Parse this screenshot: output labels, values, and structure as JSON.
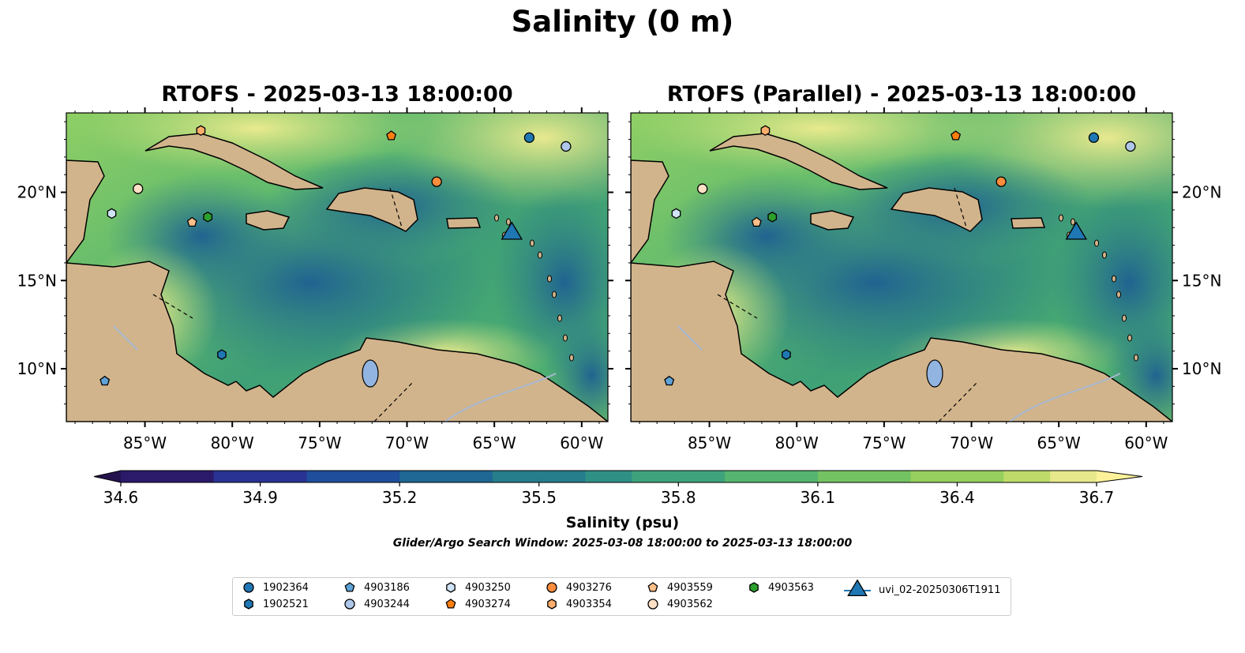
{
  "title": "Salinity (0 m)",
  "panels": [
    {
      "title": "RTOFS - 2025-03-13 18:00:00"
    },
    {
      "title": "RTOFS (Parallel) - 2025-03-13 18:00:00"
    }
  ],
  "axes": {
    "lon_ticks": [
      "85°W",
      "80°W",
      "75°W",
      "70°W",
      "65°W",
      "60°W"
    ],
    "lat_ticks": [
      "20°N",
      "15°N",
      "10°N"
    ],
    "lon_values": [
      -85,
      -80,
      -75,
      -70,
      -65,
      -60
    ],
    "lat_values": [
      20,
      15,
      10
    ],
    "lon_range": [
      -89.5,
      -58.5
    ],
    "lat_range": [
      7,
      24.5
    ]
  },
  "colorbar": {
    "min": 34.6,
    "max": 36.7,
    "ticks": [
      "34.6",
      "34.9",
      "35.2",
      "35.5",
      "35.8",
      "36.1",
      "36.4",
      "36.7"
    ],
    "label": "Salinity (psu)",
    "extend": "both"
  },
  "search_window": "Glider/Argo Search Window: 2025-03-08 18:00:00 to 2025-03-13 18:00:00",
  "platforms": [
    {
      "id": "1902364",
      "marker": "circle",
      "color": "#1f77b4",
      "lon": -63.0,
      "lat": 23.1
    },
    {
      "id": "1902521",
      "marker": "hexagon",
      "color": "#1f77b4",
      "lon": -80.6,
      "lat": 10.8
    },
    {
      "id": "4903186",
      "marker": "pentagon",
      "color": "#5fa2d6",
      "lon": -87.3,
      "lat": 9.3
    },
    {
      "id": "4903244",
      "marker": "circle",
      "color": "#aec7e8",
      "lon": -60.9,
      "lat": 22.6
    },
    {
      "id": "4903250",
      "marker": "hexagon",
      "color": "#cfe3f5",
      "lon": -86.9,
      "lat": 18.8
    },
    {
      "id": "4903274",
      "marker": "pentagon",
      "color": "#ff7f0e",
      "lon": -70.9,
      "lat": 23.2
    },
    {
      "id": "4903276",
      "marker": "circle",
      "color": "#fd8d3c",
      "lon": -68.3,
      "lat": 20.6
    },
    {
      "id": "4903354",
      "marker": "hexagon",
      "color": "#fdae6b",
      "lon": -81.8,
      "lat": 23.5
    },
    {
      "id": "4903559",
      "marker": "pentagon",
      "color": "#fdbf8a",
      "lon": -82.3,
      "lat": 18.3
    },
    {
      "id": "4903562",
      "marker": "circle",
      "color": "#fde0c5",
      "lon": -85.4,
      "lat": 20.2
    },
    {
      "id": "4903563",
      "marker": "hexagon",
      "color": "#2ca02c",
      "lon": -81.4,
      "lat": 18.6
    },
    {
      "id": "uvi_02-20250306T1911",
      "marker": "triangle",
      "color": "#1f77b4",
      "lon": -64.0,
      "lat": 17.7
    }
  ],
  "colors": {
    "land": "#d2b48c",
    "river": "#a6b8d0",
    "lake": "#92b4e0",
    "pacific": "#26145c"
  }
}
